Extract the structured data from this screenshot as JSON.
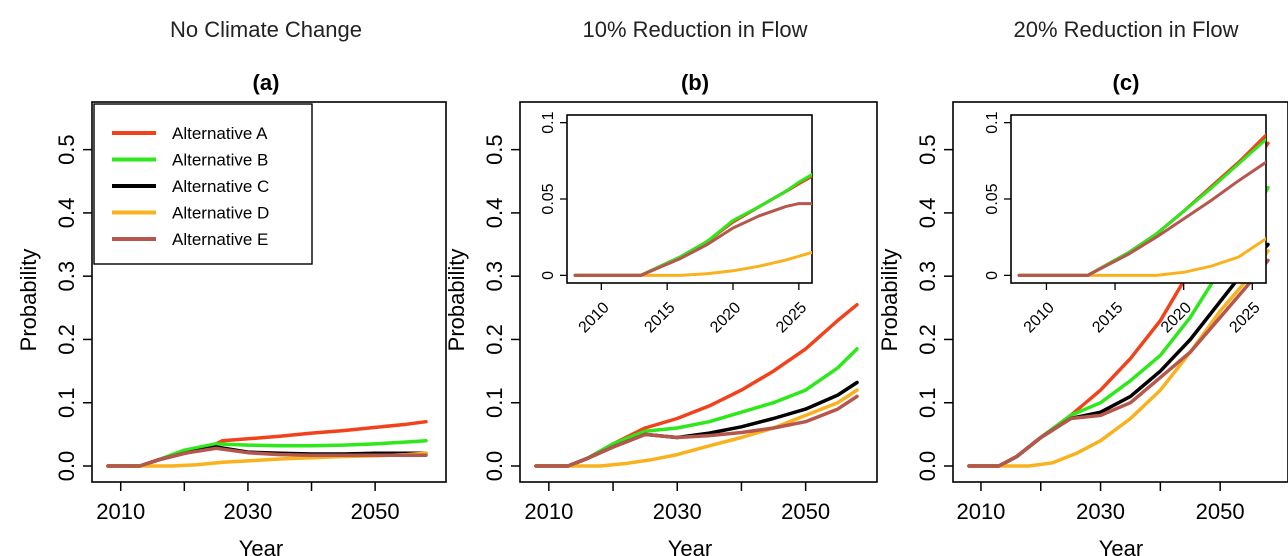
{
  "chart_data": [
    {
      "type": "line",
      "panel_title": "No Climate Change",
      "panel_letter": "(a)",
      "xlabel": "Year",
      "ylabel": "Probability",
      "xlim": [
        2008,
        2058
      ],
      "ylim": [
        0,
        0.55
      ],
      "xticks": [
        2010,
        2020,
        2030,
        2040,
        2050
      ],
      "xtick_labels": [
        "2010",
        "",
        "2030",
        "",
        "2050"
      ],
      "yticks": [
        0.0,
        0.1,
        0.2,
        0.3,
        0.4,
        0.5
      ],
      "ytick_labels": [
        "0.0",
        "0.1",
        "0.2",
        "0.3",
        "0.4",
        "0.5"
      ],
      "legend_position": "top-left",
      "series": [
        {
          "name": "Alternative A",
          "color": "#f2421b",
          "x": [
            2008,
            2013,
            2016,
            2020,
            2024,
            2025,
            2026,
            2030,
            2035,
            2040,
            2045,
            2050,
            2055,
            2058
          ],
          "y": [
            0,
            0,
            0.01,
            0.02,
            0.03,
            0.035,
            0.04,
            0.043,
            0.047,
            0.052,
            0.056,
            0.061,
            0.066,
            0.07
          ]
        },
        {
          "name": "Alternative B",
          "color": "#2ee81b",
          "x": [
            2008,
            2013,
            2016,
            2020,
            2025,
            2030,
            2035,
            2040,
            2045,
            2050,
            2055,
            2058
          ],
          "y": [
            0,
            0,
            0.01,
            0.025,
            0.035,
            0.033,
            0.032,
            0.032,
            0.033,
            0.035,
            0.038,
            0.04
          ]
        },
        {
          "name": "Alternative C",
          "color": "#000000",
          "x": [
            2008,
            2013,
            2016,
            2020,
            2025,
            2030,
            2035,
            2040,
            2045,
            2050,
            2055,
            2058
          ],
          "y": [
            0,
            0,
            0.01,
            0.02,
            0.03,
            0.022,
            0.02,
            0.019,
            0.019,
            0.02,
            0.02,
            0.02
          ]
        },
        {
          "name": "Alternative D",
          "color": "#f9b21e",
          "x": [
            2008,
            2018,
            2022,
            2026,
            2030,
            2035,
            2040,
            2045,
            2050,
            2055,
            2058
          ],
          "y": [
            0,
            0,
            0.002,
            0.006,
            0.008,
            0.011,
            0.013,
            0.015,
            0.016,
            0.018,
            0.02
          ]
        },
        {
          "name": "Alternative E",
          "color": "#b5574d",
          "x": [
            2008,
            2013,
            2016,
            2020,
            2025,
            2030,
            2035,
            2040,
            2045,
            2050,
            2055,
            2058
          ],
          "y": [
            0,
            0,
            0.01,
            0.02,
            0.028,
            0.021,
            0.018,
            0.017,
            0.017,
            0.017,
            0.017,
            0.017
          ]
        }
      ]
    },
    {
      "type": "line",
      "panel_title": "10% Reduction in Flow",
      "panel_letter": "(b)",
      "xlabel": "Year",
      "ylabel": "Probability",
      "xlim": [
        2008,
        2058
      ],
      "ylim": [
        0,
        0.55
      ],
      "xticks": [
        2010,
        2020,
        2030,
        2040,
        2050
      ],
      "xtick_labels": [
        "2010",
        "",
        "2030",
        "",
        "2050"
      ],
      "yticks": [
        0.0,
        0.1,
        0.2,
        0.3,
        0.4,
        0.5
      ],
      "ytick_labels": [
        "0.0",
        "0.1",
        "0.2",
        "0.3",
        "0.4",
        "0.5"
      ],
      "series": [
        {
          "name": "Alternative A",
          "color": "#f2421b",
          "x": [
            2008,
            2013,
            2016,
            2020,
            2025,
            2030,
            2035,
            2040,
            2045,
            2050,
            2055,
            2058
          ],
          "y": [
            0,
            0,
            0.012,
            0.035,
            0.06,
            0.075,
            0.095,
            0.12,
            0.15,
            0.185,
            0.23,
            0.255
          ]
        },
        {
          "name": "Alternative B",
          "color": "#2ee81b",
          "x": [
            2008,
            2013,
            2016,
            2020,
            2025,
            2030,
            2035,
            2040,
            2045,
            2050,
            2055,
            2058
          ],
          "y": [
            0,
            0,
            0.012,
            0.035,
            0.055,
            0.06,
            0.07,
            0.085,
            0.1,
            0.12,
            0.155,
            0.185
          ]
        },
        {
          "name": "Alternative C",
          "color": "#000000",
          "x": [
            2008,
            2013,
            2016,
            2020,
            2025,
            2030,
            2035,
            2040,
            2045,
            2050,
            2055,
            2058
          ],
          "y": [
            0,
            0,
            0.012,
            0.03,
            0.05,
            0.045,
            0.052,
            0.062,
            0.075,
            0.09,
            0.112,
            0.132
          ]
        },
        {
          "name": "Alternative D",
          "color": "#f9b21e",
          "x": [
            2008,
            2018,
            2022,
            2026,
            2030,
            2035,
            2040,
            2045,
            2050,
            2055,
            2058
          ],
          "y": [
            0,
            0,
            0.004,
            0.01,
            0.018,
            0.032,
            0.045,
            0.06,
            0.08,
            0.1,
            0.12
          ]
        },
        {
          "name": "Alternative E",
          "color": "#b5574d",
          "x": [
            2008,
            2013,
            2016,
            2020,
            2025,
            2030,
            2035,
            2040,
            2045,
            2050,
            2055,
            2058
          ],
          "y": [
            0,
            0,
            0.012,
            0.03,
            0.05,
            0.045,
            0.048,
            0.053,
            0.06,
            0.07,
            0.09,
            0.11
          ]
        }
      ],
      "inset": {
        "xlim": [
          2008,
          2026
        ],
        "ylim": [
          -0.005,
          0.105
        ],
        "xticks": [
          2010,
          2015,
          2020,
          2025
        ],
        "xtick_labels": [
          "2010",
          "2015",
          "2020",
          "2025"
        ],
        "yticks": [
          0,
          0.05,
          0.1
        ],
        "ytick_labels": [
          "0",
          "0.05",
          "0.1"
        ],
        "series": [
          {
            "name": "Alternative D",
            "color": "#f9b21e",
            "x": [
              2008,
              2016,
              2018,
              2020,
              2022,
              2024,
              2026
            ],
            "y": [
              0,
              0,
              0.001,
              0.003,
              0.006,
              0.01,
              0.015
            ]
          },
          {
            "name": "Alternative C",
            "color": "#000000",
            "x": [
              2008,
              2013,
              2016,
              2018,
              2020,
              2022,
              2024,
              2025,
              2026
            ],
            "y": [
              0,
              0,
              0.012,
              0.022,
              0.035,
              0.045,
              0.055,
              0.06,
              0.065
            ]
          },
          {
            "name": "Alternative A",
            "color": "#f2421b",
            "x": [
              2008,
              2013,
              2016,
              2018,
              2020,
              2022,
              2024,
              2025,
              2026
            ],
            "y": [
              0,
              0,
              0.012,
              0.022,
              0.035,
              0.045,
              0.055,
              0.06,
              0.065
            ]
          },
          {
            "name": "Alternative B",
            "color": "#2ee81b",
            "x": [
              2008,
              2013,
              2016,
              2018,
              2020,
              2022,
              2024,
              2025,
              2026
            ],
            "y": [
              0,
              0,
              0.012,
              0.022,
              0.036,
              0.045,
              0.055,
              0.061,
              0.066
            ]
          },
          {
            "name": "Alternative E",
            "color": "#b5574d",
            "x": [
              2008,
              2013,
              2016,
              2018,
              2020,
              2022,
              2024,
              2025,
              2026
            ],
            "y": [
              0,
              0,
              0.011,
              0.02,
              0.031,
              0.039,
              0.045,
              0.047,
              0.047
            ]
          }
        ]
      }
    },
    {
      "type": "line",
      "panel_title": "20% Reduction in Flow",
      "panel_letter": "(c)",
      "xlabel": "Year",
      "ylabel": "Probability",
      "xlim": [
        2008,
        2058
      ],
      "ylim": [
        0,
        0.55
      ],
      "xticks": [
        2010,
        2020,
        2030,
        2040,
        2050
      ],
      "xtick_labels": [
        "2010",
        "",
        "2030",
        "",
        "2050"
      ],
      "yticks": [
        0.0,
        0.1,
        0.2,
        0.3,
        0.4,
        0.5
      ],
      "ytick_labels": [
        "0.0",
        "0.1",
        "0.2",
        "0.3",
        "0.4",
        "0.5"
      ],
      "series": [
        {
          "name": "Alternative A",
          "color": "#f2421b",
          "x": [
            2008,
            2013,
            2016,
            2020,
            2025,
            2030,
            2035,
            2040,
            2045,
            2050,
            2055,
            2058
          ],
          "y": [
            0,
            0,
            0.015,
            0.045,
            0.08,
            0.12,
            0.17,
            0.23,
            0.31,
            0.4,
            0.47,
            0.51
          ]
        },
        {
          "name": "Alternative B",
          "color": "#2ee81b",
          "x": [
            2008,
            2013,
            2016,
            2020,
            2025,
            2030,
            2035,
            2040,
            2045,
            2050,
            2055,
            2058
          ],
          "y": [
            0,
            0,
            0.015,
            0.045,
            0.08,
            0.1,
            0.135,
            0.175,
            0.235,
            0.31,
            0.39,
            0.44
          ]
        },
        {
          "name": "Alternative C",
          "color": "#000000",
          "x": [
            2008,
            2013,
            2016,
            2020,
            2025,
            2030,
            2035,
            2040,
            2045,
            2050,
            2055,
            2058
          ],
          "y": [
            0,
            0,
            0.015,
            0.045,
            0.075,
            0.085,
            0.11,
            0.15,
            0.2,
            0.26,
            0.32,
            0.35
          ]
        },
        {
          "name": "Alternative D",
          "color": "#f9b21e",
          "x": [
            2008,
            2018,
            2022,
            2026,
            2030,
            2035,
            2040,
            2045,
            2050,
            2055,
            2058
          ],
          "y": [
            0,
            0,
            0.005,
            0.02,
            0.04,
            0.075,
            0.12,
            0.18,
            0.245,
            0.3,
            0.34
          ]
        },
        {
          "name": "Alternative E",
          "color": "#b5574d",
          "x": [
            2008,
            2013,
            2016,
            2020,
            2025,
            2030,
            2035,
            2040,
            2045,
            2050,
            2055,
            2058
          ],
          "y": [
            0,
            0,
            0.015,
            0.045,
            0.075,
            0.08,
            0.1,
            0.14,
            0.18,
            0.235,
            0.29,
            0.325
          ]
        }
      ],
      "inset": {
        "xlim": [
          2008,
          2026
        ],
        "ylim": [
          -0.005,
          0.105
        ],
        "xticks": [
          2010,
          2015,
          2020,
          2025
        ],
        "xtick_labels": [
          "2010",
          "2015",
          "2020",
          "2025"
        ],
        "yticks": [
          0,
          0.05,
          0.1
        ],
        "ytick_labels": [
          "0",
          "0.05",
          "0.1"
        ],
        "series": [
          {
            "name": "Alternative D",
            "color": "#f9b21e",
            "x": [
              2008,
              2018,
              2020,
              2022,
              2024,
              2026
            ],
            "y": [
              0,
              0,
              0.002,
              0.006,
              0.012,
              0.024
            ]
          },
          {
            "name": "Alternative C",
            "color": "#000000",
            "x": [
              2008,
              2013,
              2016,
              2018,
              2020,
              2022,
              2024,
              2026
            ],
            "y": [
              0,
              0,
              0.015,
              0.027,
              0.042,
              0.058,
              0.074,
              0.09
            ]
          },
          {
            "name": "Alternative A",
            "color": "#f2421b",
            "x": [
              2008,
              2013,
              2016,
              2018,
              2020,
              2022,
              2024,
              2026
            ],
            "y": [
              0,
              0,
              0.015,
              0.027,
              0.042,
              0.058,
              0.074,
              0.092
            ]
          },
          {
            "name": "Alternative B",
            "color": "#2ee81b",
            "x": [
              2008,
              2013,
              2016,
              2018,
              2020,
              2022,
              2024,
              2026
            ],
            "y": [
              0,
              0,
              0.015,
              0.027,
              0.042,
              0.057,
              0.073,
              0.089
            ]
          },
          {
            "name": "Alternative E",
            "color": "#b5574d",
            "x": [
              2008,
              2013,
              2016,
              2018,
              2020,
              2022,
              2024,
              2026
            ],
            "y": [
              0,
              0,
              0.014,
              0.025,
              0.037,
              0.049,
              0.062,
              0.074
            ]
          }
        ]
      }
    }
  ]
}
